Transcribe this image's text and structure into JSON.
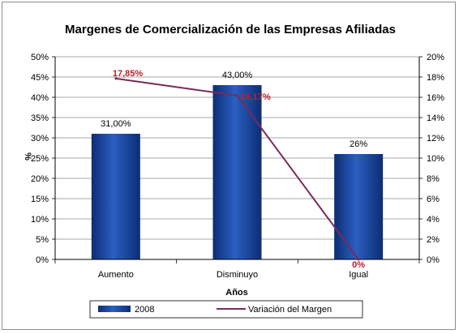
{
  "chart_data": {
    "type": "bar",
    "title": "Margenes de Comercialización de las Empresas Afiliadas",
    "xlabel": "Años",
    "ylabel": "%",
    "categories": [
      "Aumento",
      "Disminuyo",
      "Igual"
    ],
    "ylim": [
      0,
      50
    ],
    "y_ticks": [
      "0%",
      "5%",
      "10%",
      "15%",
      "20%",
      "25%",
      "30%",
      "35%",
      "40%",
      "45%",
      "50%"
    ],
    "y2lim": [
      0,
      20
    ],
    "y2_ticks": [
      "0%",
      "2%",
      "4%",
      "6%",
      "8%",
      "10%",
      "12%",
      "14%",
      "16%",
      "18%",
      "20%"
    ],
    "grid": true,
    "legend_position": "bottom",
    "series": [
      {
        "name": "2008",
        "type": "bar",
        "axis": "left",
        "values": [
          31,
          43,
          26
        ],
        "labels": [
          "31,00%",
          "43,00%",
          "26%"
        ],
        "color": "#1f4fa8"
      },
      {
        "name": "Variación del Margen",
        "type": "line",
        "axis": "right",
        "values": [
          17.85,
          16.17,
          0
        ],
        "labels": [
          "17,85%",
          "16,17%",
          "0%"
        ],
        "color": "#7a2a5a",
        "label_color": "#c0202a"
      }
    ]
  }
}
